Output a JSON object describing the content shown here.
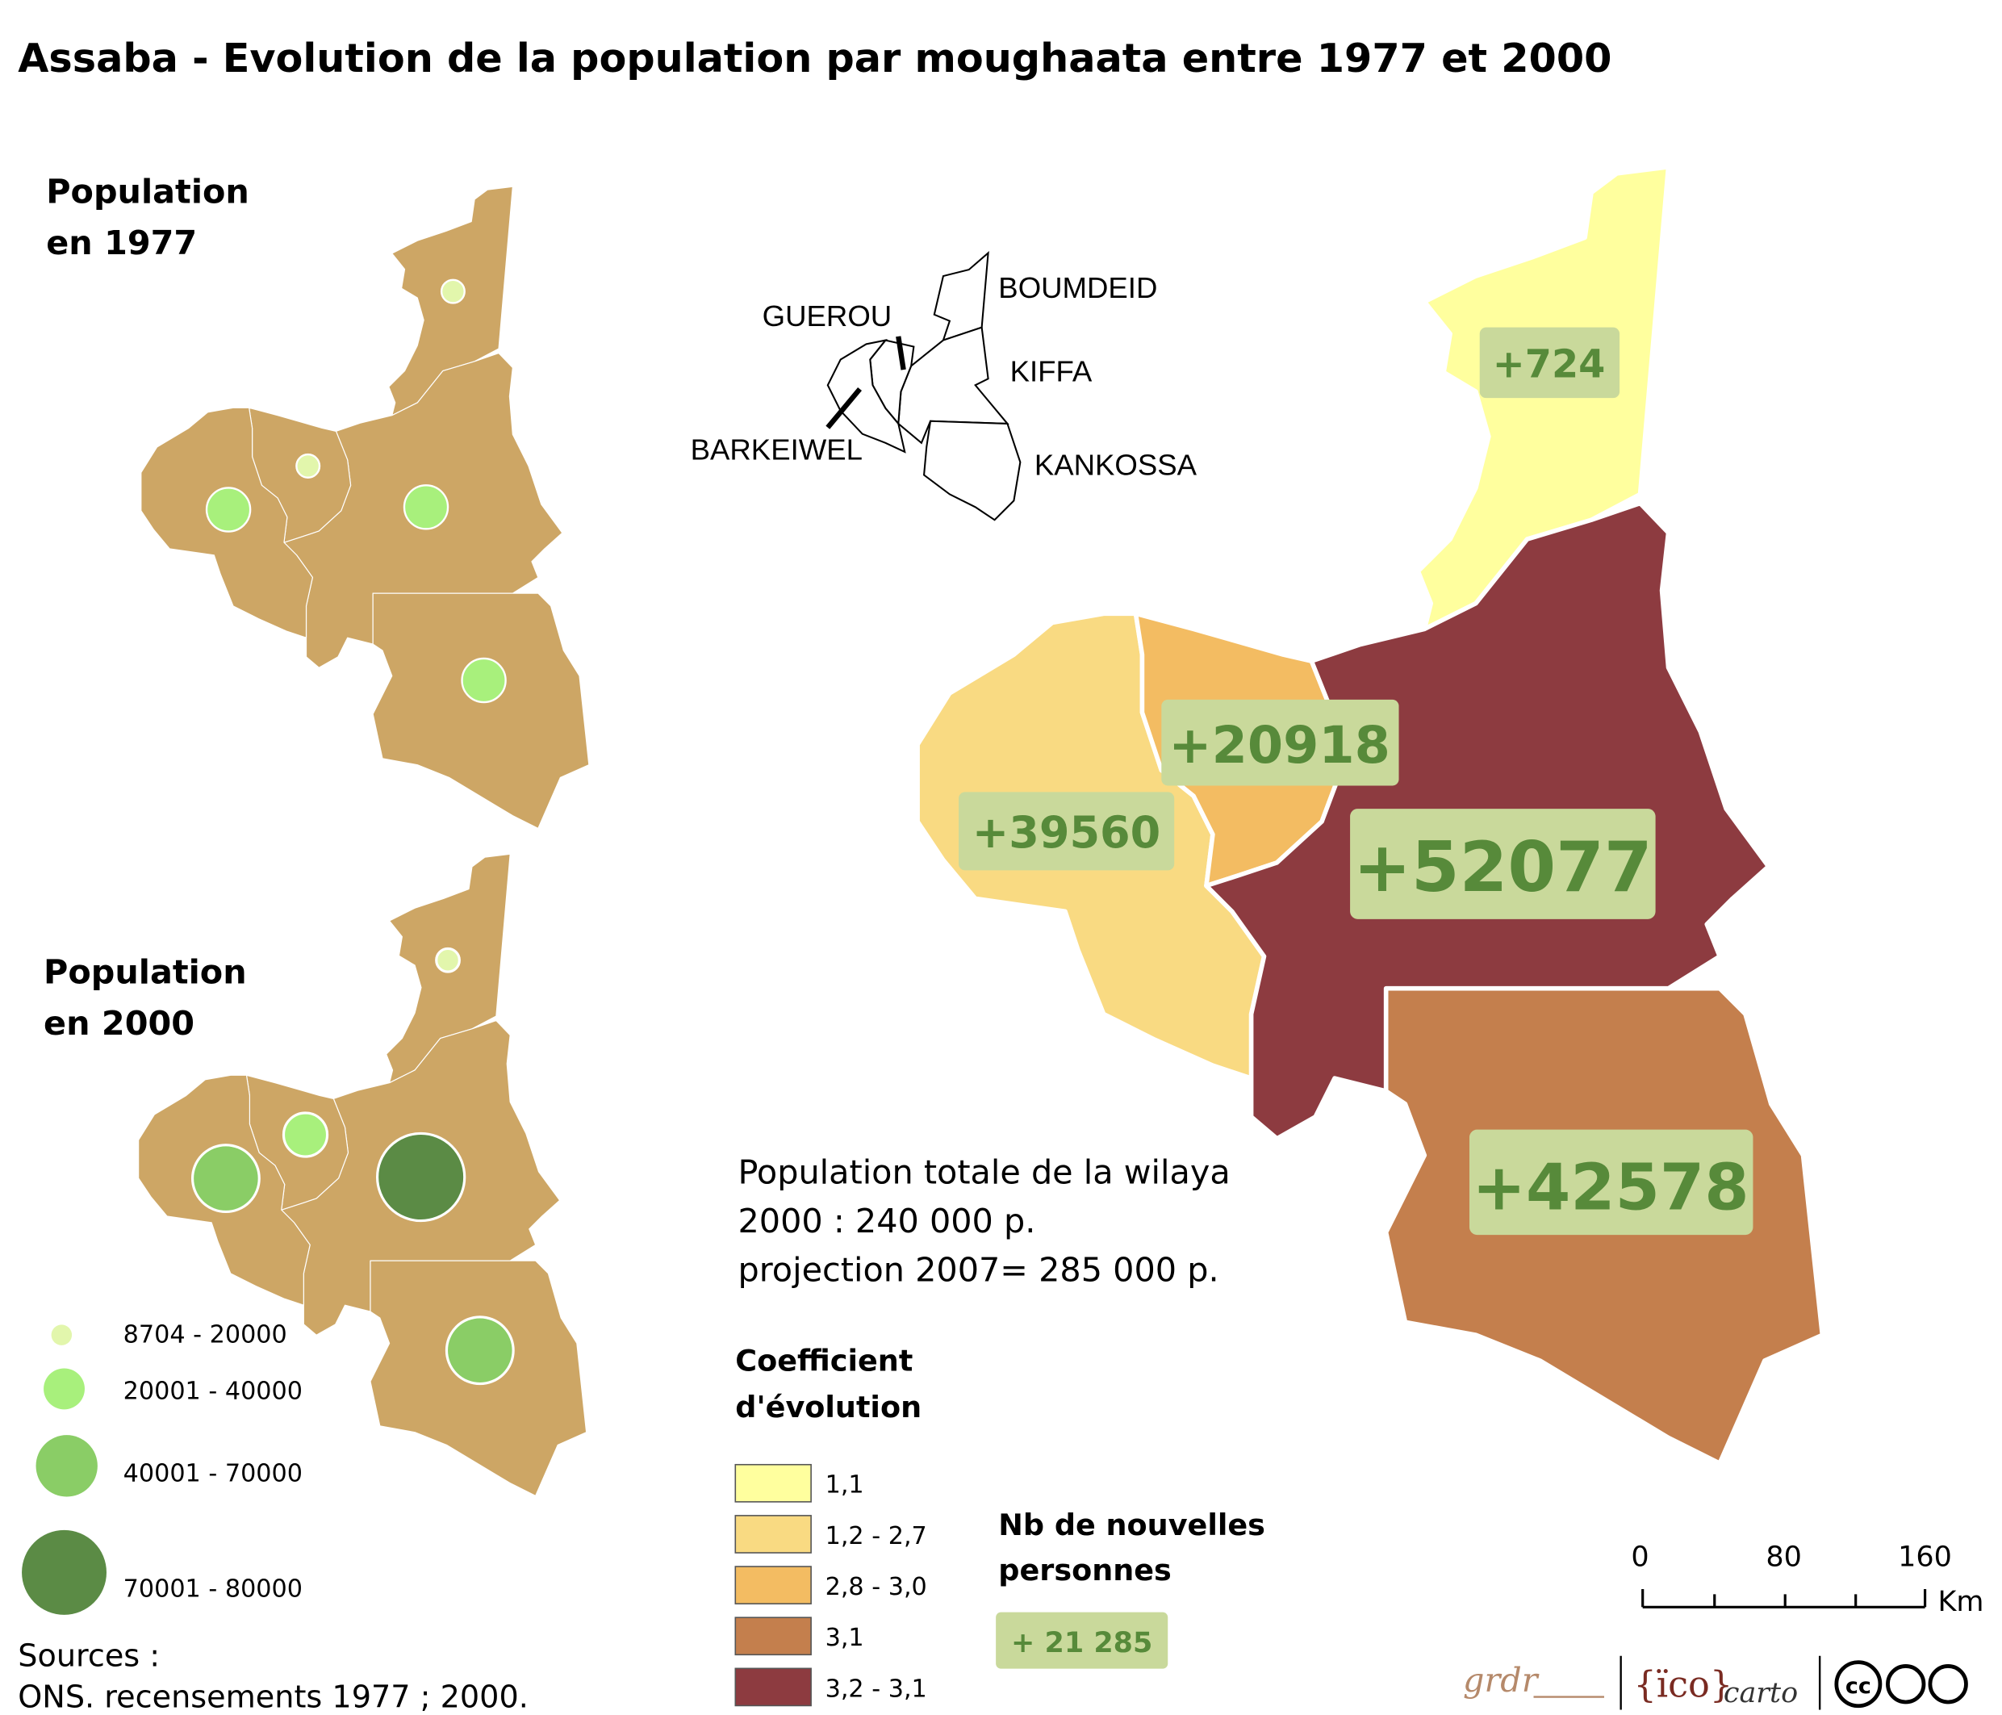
{
  "title": "Assaba - Evolution de la population par moughaata entre 1977 et 2000",
  "map_1977": {
    "title": [
      "Population",
      "en 1977"
    ]
  },
  "map_2000": {
    "title": [
      "Population",
      "en 2000"
    ]
  },
  "size_legend": {
    "items": [
      "8704 - 20000",
      "20001 - 40000",
      "40001 - 70000",
      "70001 - 80000"
    ]
  },
  "locator": {
    "labels": [
      "BOUMDEID",
      "GUEROU",
      "KIFFA",
      "BARKEIWEL",
      "KANKOSSA"
    ]
  },
  "main_map": {
    "labels": [
      "+724",
      "+20918",
      "+39560",
      "+52077",
      "+42578"
    ]
  },
  "totals": [
    "Population totale de la wilaya",
    "2000 : 240 000 p.",
    "projection 2007= 285 000 p."
  ],
  "coef_legend": {
    "title": [
      "Coefficient",
      "d'évolution"
    ],
    "items": [
      {
        "label": "1,1",
        "color": "#ffff9e"
      },
      {
        "label": "1,2 - 2,7",
        "color": "#f9da82"
      },
      {
        "label": "2,8 - 3,0",
        "color": "#f3bc62"
      },
      {
        "label": "3,1",
        "color": "#c47f4d"
      },
      {
        "label": "3,2 - 3,1",
        "color": "#8d3b40"
      }
    ]
  },
  "new_people_legend": {
    "title": [
      "Nb de nouvelles",
      "personnes"
    ],
    "example": "+ 21 285"
  },
  "scale": {
    "ticks": [
      "0",
      "80",
      "160"
    ],
    "unit": "Km"
  },
  "sources": [
    "Sources :",
    "ONS. recensements 1977 ; 2000."
  ],
  "logos": [
    "grdr",
    "{ïco}",
    "carto",
    "cc"
  ]
}
